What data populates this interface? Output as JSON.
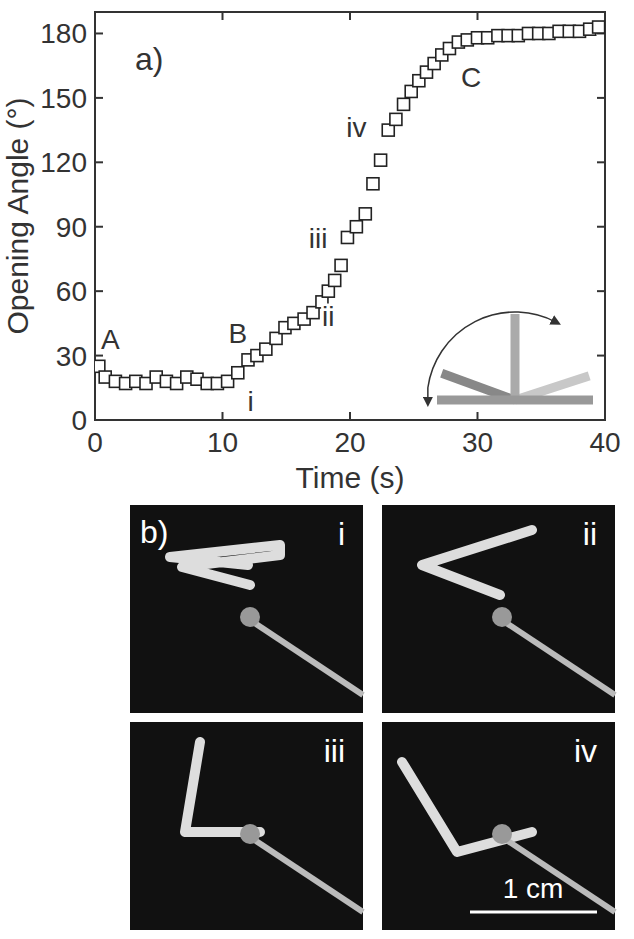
{
  "chart_data": {
    "type": "scatter",
    "label": "a)",
    "x_label": "Time (s)",
    "y_label": "Opening Angle (°)",
    "marker": "square",
    "color": "#222222",
    "x": [
      0.3,
      0.8,
      1.6,
      2.4,
      3.2,
      4.0,
      4.8,
      5.6,
      6.4,
      7.2,
      8.0,
      8.8,
      9.6,
      10.4,
      11.2,
      12.0,
      12.7,
      13.4,
      14.2,
      14.9,
      15.6,
      16.4,
      17.1,
      17.8,
      18.3,
      18.8,
      19.3,
      19.8,
      20.5,
      21.2,
      21.8,
      22.4,
      23.0,
      23.6,
      24.2,
      24.8,
      25.4,
      26.0,
      26.6,
      27.2,
      27.8,
      28.5,
      29.2,
      30.0,
      30.8,
      31.6,
      32.4,
      33.2,
      34.0,
      34.8,
      35.6,
      36.4,
      37.2,
      38.0,
      38.8,
      39.5
    ],
    "values": [
      25,
      20,
      18,
      17,
      18,
      17,
      20,
      18,
      17,
      20,
      19,
      17,
      17,
      18,
      22,
      28,
      30,
      33,
      38,
      43,
      45,
      47,
      50,
      55,
      60,
      65,
      72,
      85,
      90,
      96,
      110,
      121,
      135,
      140,
      147,
      153,
      158,
      162,
      166,
      170,
      173,
      176,
      177,
      178,
      178,
      179,
      179,
      179,
      180,
      180,
      180,
      181,
      181,
      181,
      182,
      183
    ],
    "xlim": [
      0,
      40
    ],
    "xticks": [
      0,
      10,
      20,
      30,
      40
    ],
    "ylim": [
      0,
      190
    ],
    "yticks": [
      0,
      30,
      60,
      90,
      120,
      150,
      180
    ],
    "annotations": [
      {
        "text": "A",
        "x": 1.2,
        "y": 33
      },
      {
        "text": "B",
        "x": 11.2,
        "y": 36
      },
      {
        "text": "C",
        "x": 29.5,
        "y": 155
      },
      {
        "text": "i",
        "x": 12.2,
        "y": 4
      },
      {
        "text": "ii",
        "x": 18.3,
        "y": 44
      },
      {
        "text": "iii",
        "x": 17.5,
        "y": 80
      },
      {
        "text": "iv",
        "x": 20.5,
        "y": 132
      }
    ]
  },
  "photos": {
    "label": "b)",
    "panels": [
      "i",
      "ii",
      "iii",
      "iv"
    ],
    "scale_bar": "1 cm"
  }
}
